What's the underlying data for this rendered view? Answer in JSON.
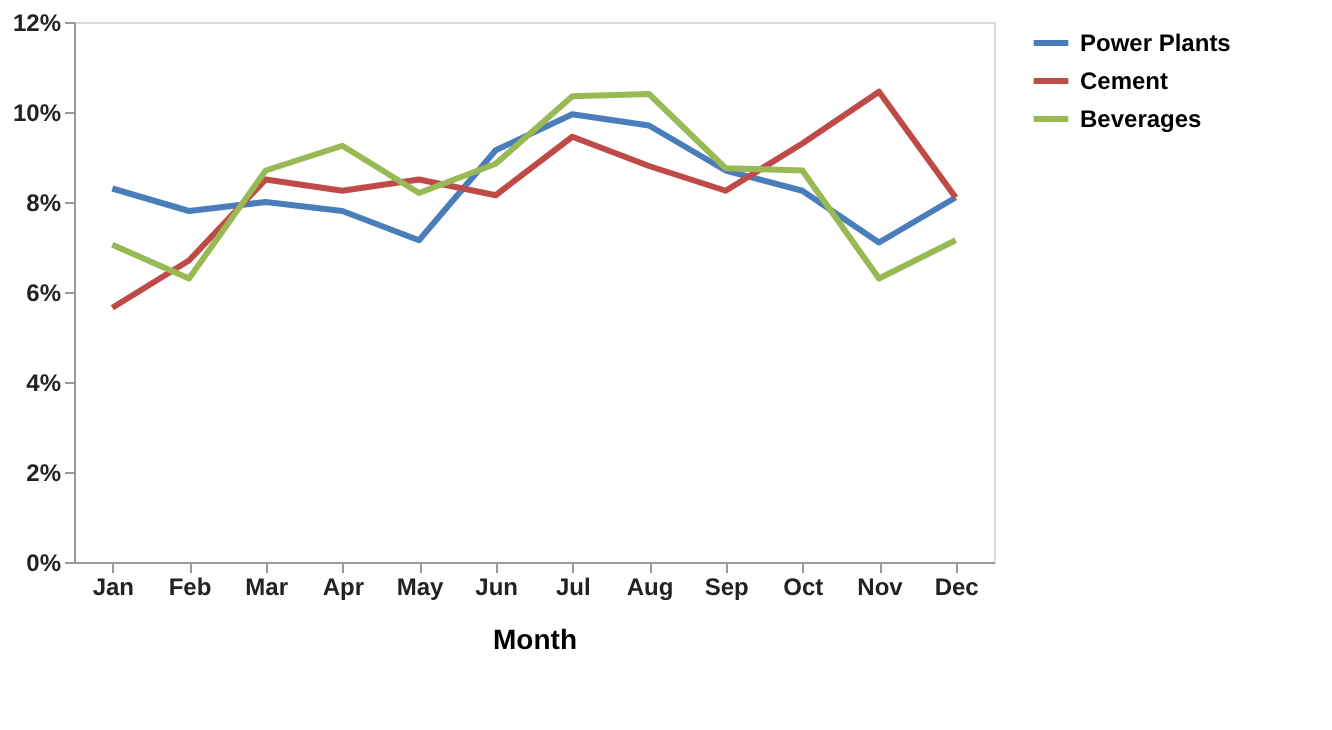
{
  "chart_data": {
    "type": "line",
    "xlabel": "Month",
    "categories": [
      "Jan",
      "Feb",
      "Mar",
      "Apr",
      "May",
      "Jun",
      "Jul",
      "Aug",
      "Sep",
      "Oct",
      "Nov",
      "Dec"
    ],
    "ylim": [
      0,
      12
    ],
    "yticks": [
      {
        "value": 0,
        "label": "0%"
      },
      {
        "value": 2,
        "label": "2%"
      },
      {
        "value": 4,
        "label": "4%"
      },
      {
        "value": 6,
        "label": "6%"
      },
      {
        "value": 8,
        "label": "8%"
      },
      {
        "value": 10,
        "label": "10%"
      },
      {
        "value": 12,
        "label": "12%"
      }
    ],
    "grid": false,
    "legend": "right",
    "marker": "none",
    "line_style": "solid",
    "series": [
      {
        "name": "Power Plants",
        "color": "#4a7ebb",
        "values": [
          8.3,
          7.8,
          8.0,
          7.8,
          7.15,
          9.15,
          9.95,
          9.7,
          8.7,
          8.25,
          7.1,
          8.1
        ]
      },
      {
        "name": "Cement",
        "color": "#be4b48",
        "values": [
          5.65,
          6.7,
          8.5,
          8.25,
          8.5,
          8.15,
          9.45,
          8.8,
          8.25,
          9.3,
          10.45,
          8.1
        ]
      },
      {
        "name": "Beverages",
        "color": "#98b954",
        "values": [
          7.05,
          6.3,
          8.7,
          9.25,
          8.2,
          8.85,
          10.35,
          10.4,
          8.75,
          8.7,
          6.3,
          7.15
        ]
      }
    ]
  }
}
